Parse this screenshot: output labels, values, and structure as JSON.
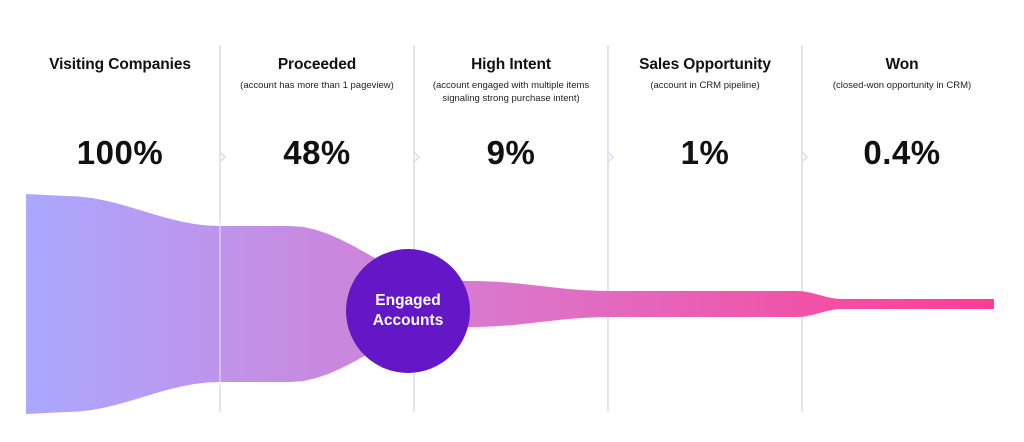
{
  "colors": {
    "funnel_start": "#aaa8ff",
    "funnel_mid": "#d77bd0",
    "funnel_end": "#ff3d92",
    "bubble": "#6417c6",
    "divider": "#dcdcea"
  },
  "stages": [
    {
      "title": "Visiting Companies",
      "subtitle": "",
      "value_label": "100%",
      "value": 100
    },
    {
      "title": "Proceeded",
      "subtitle": "(account has more than 1 pageview)",
      "value_label": "48%",
      "value": 48
    },
    {
      "title": "High Intent",
      "subtitle": "(account engaged with multiple items signaling strong purchase intent)",
      "value_label": "9%",
      "value": 9
    },
    {
      "title": "Sales Opportunity",
      "subtitle": "(account in CRM pipeline)",
      "value_label": "1%",
      "value": 1
    },
    {
      "title": "Won",
      "subtitle": "(closed-won opportunity in CRM)",
      "value_label": "0.4%",
      "value": 0.4
    }
  ],
  "bubble": {
    "label": "Engaged\nAccounts"
  },
  "chart_data": {
    "type": "area",
    "categories": [
      "Visiting Companies",
      "Proceeded",
      "High Intent",
      "Sales Opportunity",
      "Won"
    ],
    "values": [
      100,
      48,
      9,
      1,
      0.4
    ],
    "value_labels": [
      "100%",
      "48%",
      "9%",
      "1%",
      "0.4%"
    ],
    "annotations": [
      "Engaged Accounts"
    ],
    "grid": false,
    "legend": "none"
  }
}
